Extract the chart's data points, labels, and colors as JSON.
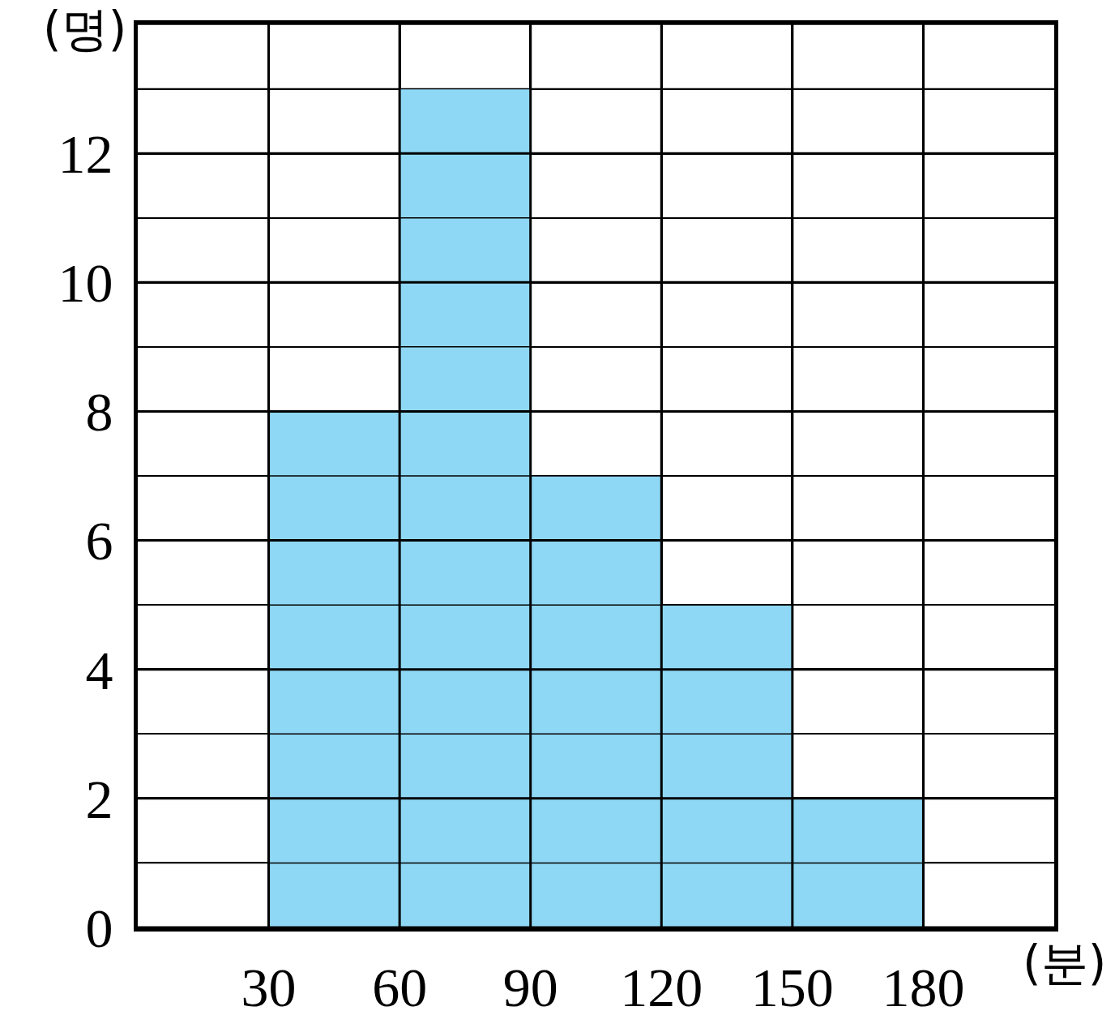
{
  "chart_data": {
    "type": "histogram",
    "xlabel": "(분)",
    "ylabel": "(명)",
    "bins": [
      30,
      60,
      90,
      120,
      150,
      180
    ],
    "values": [
      8,
      13,
      7,
      5,
      2
    ],
    "color": "#8fd8f5",
    "xlim": [
      0,
      210
    ],
    "xticks": [
      30,
      60,
      90,
      120,
      150,
      180
    ],
    "ylim": [
      0,
      14
    ],
    "yticks": [
      0,
      2,
      4,
      6,
      8,
      10,
      12
    ],
    "grid": true
  }
}
